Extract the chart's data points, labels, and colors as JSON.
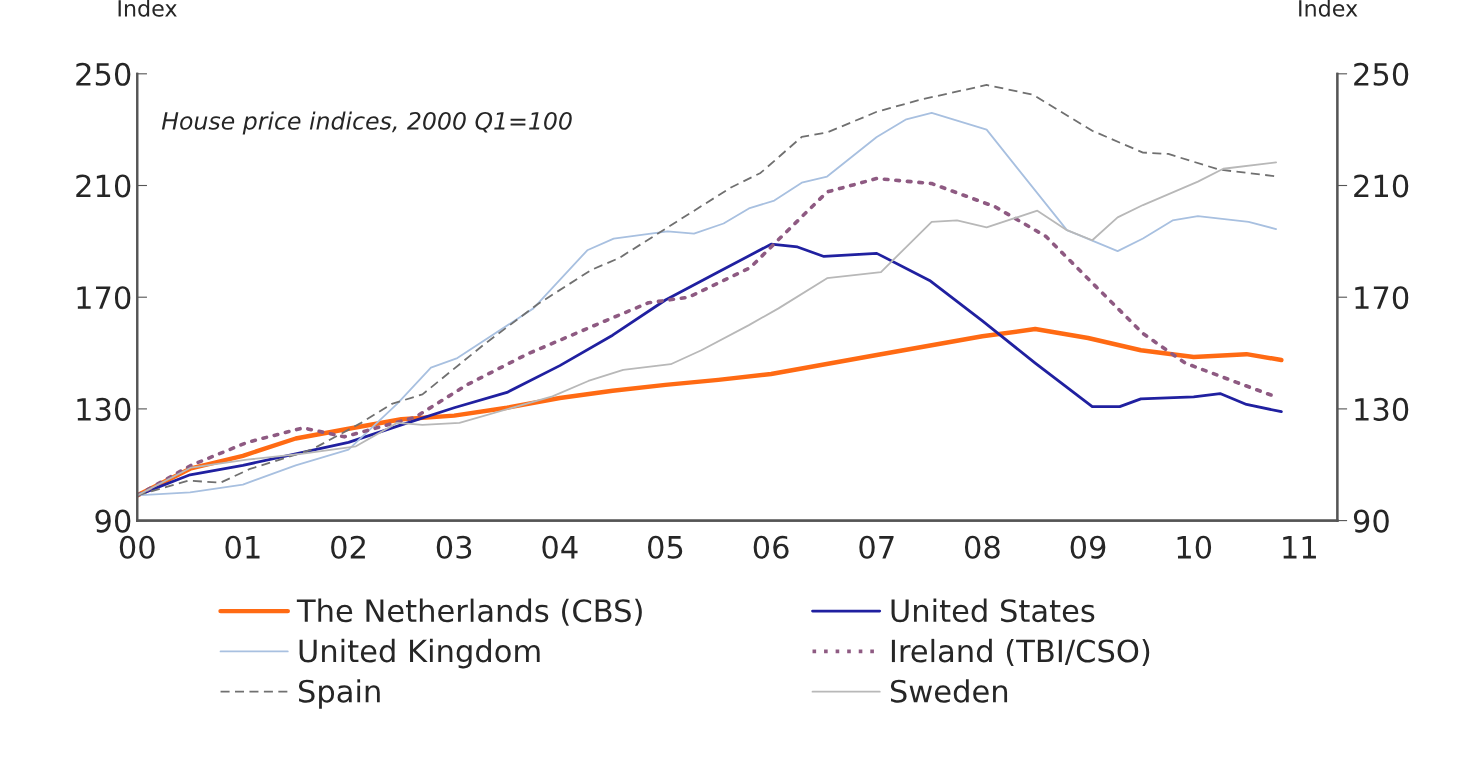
{
  "chart_data": {
    "type": "line",
    "ylabel": "Index",
    "y2label": "Index",
    "annotations": [
      "House price indices, 2000 Q1=100"
    ],
    "xlim": [
      0,
      11.36
    ],
    "xticks": [
      {
        "value": 0,
        "label": "00"
      },
      {
        "value": 1,
        "label": "01"
      },
      {
        "value": 2,
        "label": "02"
      },
      {
        "value": 3,
        "label": "03"
      },
      {
        "value": 4,
        "label": "04"
      },
      {
        "value": 5,
        "label": "05"
      },
      {
        "value": 6,
        "label": "06"
      },
      {
        "value": 7,
        "label": "07"
      },
      {
        "value": 8,
        "label": "08"
      },
      {
        "value": 9,
        "label": "09"
      },
      {
        "value": 10,
        "label": "10"
      },
      {
        "value": 11,
        "label": "11"
      }
    ],
    "ylim": [
      90,
      250
    ],
    "yticks": [
      90,
      130,
      170,
      210,
      250
    ],
    "y2lim": [
      90,
      250
    ],
    "y2ticks": [
      90,
      130,
      170,
      210,
      250
    ],
    "grid": false,
    "legend": "bottom",
    "marker": "none",
    "series": [
      {
        "name": "The Netherlands (CBS)",
        "color": "#ff6a13",
        "line_style": "solid",
        "x": [
          0,
          0.5,
          1,
          1.5,
          2,
          2.5,
          3,
          3.5,
          4,
          4.5,
          5,
          5.5,
          6,
          7,
          8,
          8.5,
          9,
          9.5,
          10,
          10.5,
          10.83
        ],
        "values": [
          99,
          108.6,
          113.2,
          119.4,
          122.9,
          126.3,
          127.6,
          130.4,
          133.9,
          136.5,
          138.6,
          140.4,
          142.5,
          149.3,
          156,
          158.6,
          155.4,
          151,
          148.6,
          149.6,
          147.5
        ]
      },
      {
        "name": "United States",
        "color": "#2020a0",
        "line_style": "solid",
        "x": [
          0,
          0.5,
          1,
          1.5,
          2,
          2.5,
          3,
          3.5,
          4,
          4.5,
          5,
          5.5,
          6,
          6.25,
          6.5,
          7,
          7.5,
          8,
          8.5,
          9.04,
          9.3,
          9.5,
          10,
          10.25,
          10.5,
          10.83
        ],
        "values": [
          99,
          106.4,
          109.8,
          113.9,
          118,
          124.3,
          130.4,
          135.9,
          145.5,
          156.4,
          169,
          179,
          189,
          188,
          184.6,
          185.7,
          176,
          161.5,
          146.4,
          130.8,
          130.8,
          133.6,
          134.3,
          135.5,
          131.6,
          129
        ]
      },
      {
        "name": "United Kingdom",
        "color": "#a8c0e0",
        "line_style": "solid",
        "x": [
          0,
          0.5,
          1,
          1.5,
          2,
          2.46,
          2.78,
          3.03,
          3.75,
          4.26,
          4.51,
          5.02,
          5.27,
          5.55,
          5.79,
          6.03,
          6.29,
          6.53,
          7,
          7.28,
          7.52,
          8.04,
          8.8,
          9.28,
          9.52,
          9.8,
          10.04,
          10.52,
          10.78
        ],
        "values": [
          99,
          100.1,
          102.9,
          109.8,
          115.4,
          131.8,
          144.8,
          148.2,
          166,
          186.8,
          191,
          193.6,
          192.8,
          196.4,
          201.8,
          204.6,
          211,
          213.2,
          227.4,
          233.7,
          236,
          230,
          194,
          186.5,
          191,
          197.5,
          199,
          197,
          194.4
        ]
      },
      {
        "name": "Ireland (TBI/CSO)",
        "color": "#8e5a82",
        "line_style": "dotted",
        "x": [
          0,
          0.51,
          1.04,
          1.57,
          1.96,
          2.63,
          3.12,
          3.69,
          4.46,
          4.84,
          5.22,
          5.8,
          6.08,
          6.53,
          7,
          7.52,
          8.12,
          8.6,
          9.08,
          9.52,
          9.92,
          10.4,
          10.78
        ],
        "values": [
          99,
          109.8,
          118,
          123.2,
          120,
          127,
          138.6,
          149.6,
          162,
          168,
          170,
          180.5,
          191,
          207.7,
          212.5,
          210.7,
          202.4,
          191.8,
          173.6,
          157,
          146.4,
          139.6,
          134.3
        ]
      },
      {
        "name": "Spain",
        "color": "#707070",
        "line_style": "dashed",
        "x": [
          0,
          0.48,
          0.79,
          1.06,
          1.65,
          2.12,
          2.41,
          2.7,
          3.28,
          3.79,
          4.3,
          4.56,
          5.62,
          5.9,
          6.29,
          6.53,
          7,
          7.41,
          8.04,
          8.48,
          9.04,
          9.52,
          9.76,
          10.24,
          10.78
        ],
        "values": [
          99,
          104.3,
          103.6,
          108.4,
          115.4,
          125,
          131.8,
          135.2,
          153,
          167.5,
          179.8,
          184,
          209.3,
          214.5,
          227.4,
          229,
          236.4,
          240.7,
          246,
          242.5,
          229.6,
          221.8,
          221.3,
          215.7,
          213.3
        ]
      },
      {
        "name": "Sweden",
        "color": "#b8b8b8",
        "line_style": "solid",
        "x": [
          0,
          0.51,
          1.04,
          1.57,
          2.07,
          2.46,
          2.7,
          3.05,
          3.93,
          4.27,
          4.6,
          5.05,
          5.34,
          5.79,
          6.07,
          6.53,
          7.04,
          7.52,
          7.76,
          8.04,
          8.52,
          8.8,
          9.04,
          9.28,
          9.52,
          10.04,
          10.28,
          10.78
        ],
        "values": [
          99,
          109,
          111.8,
          114,
          116.6,
          125,
          124.3,
          125,
          134.5,
          140,
          144,
          146,
          151,
          160,
          166,
          176.8,
          179,
          197,
          197.5,
          195,
          201,
          194,
          190.4,
          198.6,
          203,
          211.4,
          216,
          218.3
        ]
      }
    ]
  }
}
